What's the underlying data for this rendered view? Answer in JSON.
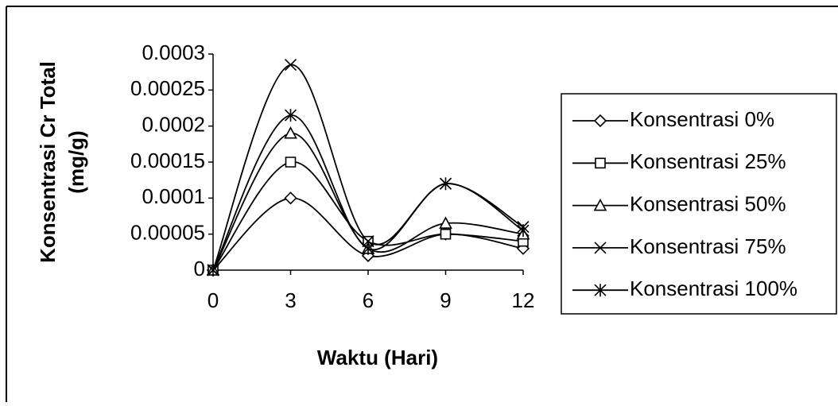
{
  "chart_data": {
    "type": "line",
    "y_label": [
      "Konsentrasi Cr Total",
      "(mg/g)"
    ],
    "x_label": "Waktu (Hari)",
    "x": [
      0,
      3,
      6,
      9,
      12
    ],
    "xlim": [
      0,
      12
    ],
    "xticks": [
      0,
      3,
      6,
      9,
      12
    ],
    "ylim": [
      0,
      0.0003
    ],
    "yticks": [
      0,
      5e-05,
      0.0001,
      0.00015,
      0.0002,
      0.00025,
      0.0003
    ],
    "grid": false,
    "legend": "right",
    "smooth": true,
    "series": [
      {
        "name": "Konsentrasi 0%",
        "color": "#000000",
        "marker": "diamond",
        "values": [
          0,
          0.0001,
          2e-05,
          5e-05,
          3e-05
        ]
      },
      {
        "name": "Konsentrasi 25%",
        "color": "#000000",
        "marker": "square",
        "values": [
          0,
          0.00015,
          4e-05,
          5e-05,
          4e-05
        ]
      },
      {
        "name": "Konsentrasi 50%",
        "color": "#000000",
        "marker": "triangle",
        "values": [
          0,
          0.00019,
          3e-05,
          6.5e-05,
          5e-05
        ]
      },
      {
        "name": "Konsentrasi 75%",
        "color": "#000000",
        "marker": "x",
        "values": [
          0,
          0.000285,
          4e-05,
          0.00012,
          6e-05
        ]
      },
      {
        "name": "Konsentrasi 100%",
        "color": "#000000",
        "marker": "star",
        "values": [
          0,
          0.000215,
          3e-05,
          0.00012,
          5.5e-05
        ]
      }
    ]
  }
}
